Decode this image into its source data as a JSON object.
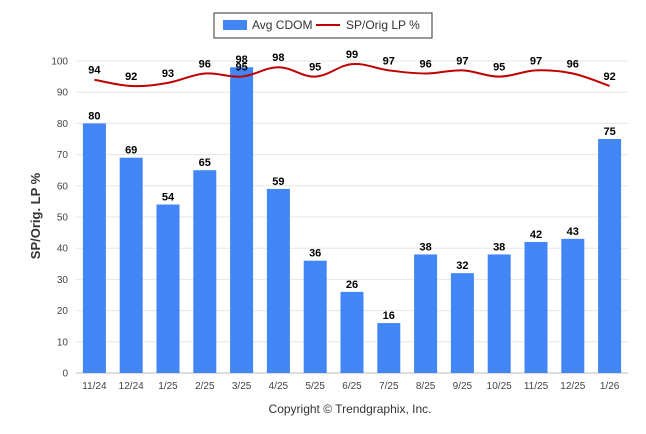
{
  "chart_data": {
    "type": "bar",
    "ylabel": "SP/Orig. LP %",
    "ylim": [
      0,
      100
    ],
    "yticks": [
      0,
      10,
      20,
      30,
      40,
      50,
      60,
      70,
      80,
      90,
      100
    ],
    "grid": true,
    "legend_position": "top-center",
    "categories": [
      "11/24",
      "12/24",
      "1/25",
      "2/25",
      "3/25",
      "4/25",
      "5/25",
      "6/25",
      "7/25",
      "8/25",
      "9/25",
      "10/25",
      "11/25",
      "12/25",
      "1/26"
    ],
    "series": [
      {
        "name": "Avg CDOM",
        "type": "bar",
        "color": "#4285f4",
        "values": [
          80,
          69,
          54,
          65,
          98,
          59,
          36,
          26,
          16,
          38,
          32,
          38,
          42,
          43,
          75
        ]
      },
      {
        "name": "SP/Orig LP %",
        "type": "line",
        "color": "#c00000",
        "values": [
          94,
          92,
          93,
          96,
          95,
          98,
          95,
          99,
          97,
          96,
          97,
          95,
          97,
          96,
          92
        ]
      }
    ]
  },
  "footer": {
    "copyright": "Copyright © Trendgraphix, Inc."
  }
}
